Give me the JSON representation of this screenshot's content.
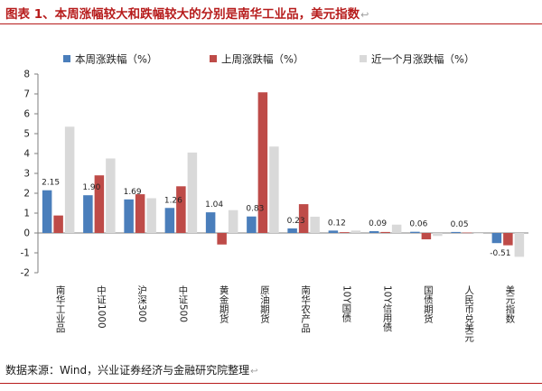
{
  "header": {
    "title": "图表 1、本周涨幅较大和跌幅较大的分别是南华工业品，美元指数",
    "mark": "↩"
  },
  "footer": {
    "source": "数据来源：Wind，兴业证券经济与金融研究院整理",
    "mark": "↩"
  },
  "colors": {
    "current": "#4a7ebb",
    "previous": "#be4b48",
    "month": "#d9d9d9",
    "axis": "#7f7f7f",
    "title": "#b71c1c"
  },
  "chart_data": {
    "type": "bar",
    "ylim": [
      -2,
      8
    ],
    "yticks": [
      "-2",
      "-1",
      "0",
      "1",
      "2",
      "3",
      "4",
      "5",
      "6",
      "7",
      "8"
    ],
    "categories": [
      "南华工业品",
      "中证1000",
      "沪深300",
      "中证500",
      "黄金期货",
      "原油期货",
      "南华农产品",
      "10Y国债",
      "10Y信用债",
      "国债期货",
      "人民币兑美元",
      "美元指数"
    ],
    "series": [
      {
        "name": "本周涨跌幅（%）",
        "values": [
          2.15,
          1.9,
          1.69,
          1.26,
          1.04,
          0.83,
          0.23,
          0.12,
          0.09,
          0.06,
          0.05,
          -0.51
        ]
      },
      {
        "name": "上周涨跌幅（%）",
        "values": [
          0.88,
          2.9,
          1.95,
          2.35,
          -0.58,
          7.08,
          1.45,
          0.04,
          0.05,
          -0.32,
          0.02,
          -0.62
        ]
      },
      {
        "name": "近一个月涨跌幅（%）",
        "values": [
          5.35,
          3.75,
          1.75,
          4.05,
          1.15,
          4.35,
          0.82,
          0.12,
          0.42,
          -0.15,
          0.0,
          -1.2
        ]
      }
    ],
    "data_labels": [
      "2.15",
      "1.90",
      "1.69",
      "1.26",
      "1.04",
      "0.83",
      "0.23",
      "0.12",
      "0.09",
      "0.06",
      "0.05",
      "-0.51"
    ]
  }
}
